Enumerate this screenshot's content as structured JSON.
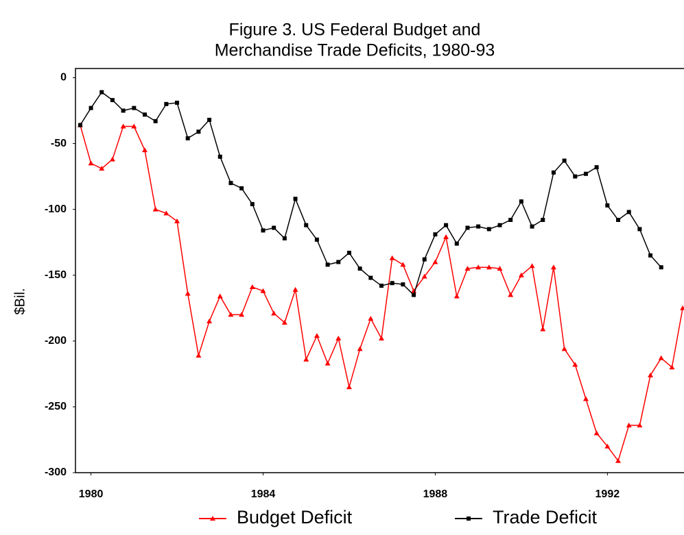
{
  "chart_data": {
    "type": "line",
    "title": [
      "Figure 3. US Federal Budget and",
      "Merchandise Trade Deficits, 1980-93"
    ],
    "y_label": "$Bil.",
    "x": [
      1979.75,
      1980,
      1980.25,
      1980.5,
      1980.75,
      1981,
      1981.25,
      1981.5,
      1981.75,
      1982,
      1982.25,
      1982.5,
      1982.75,
      1983,
      1983.25,
      1983.5,
      1983.75,
      1984,
      1984.25,
      1984.5,
      1984.75,
      1985,
      1985.25,
      1985.5,
      1985.75,
      1986,
      1986.25,
      1986.5,
      1986.75,
      1987,
      1987.25,
      1987.5,
      1987.75,
      1988,
      1988.25,
      1988.5,
      1988.75,
      1989,
      1989.25,
      1989.5,
      1989.75,
      1990,
      1990.25,
      1990.5,
      1990.75,
      1991,
      1991.25,
      1991.5,
      1991.75,
      1992,
      1992.25,
      1992.5,
      1992.75,
      1993,
      1993.25,
      1993.5,
      1993.75
    ],
    "series": [
      {
        "name": "Budget Deficit",
        "color": "#ff0000",
        "marker": "triangle",
        "values": [
          -36,
          -65,
          -69,
          -62,
          -37,
          -37,
          -55,
          -100,
          -103,
          -109,
          -164,
          -211,
          -185,
          -166,
          -180,
          -180,
          -159,
          -162,
          -179,
          -186,
          -161,
          -214,
          -196,
          -217,
          -198,
          -235,
          -206,
          -183,
          -198,
          -137,
          -142,
          -162,
          -151,
          -140,
          -121,
          -166,
          -145,
          -144,
          -144,
          -145,
          -165,
          -150,
          -143,
          -191,
          -144,
          -206,
          -218,
          -244,
          -270,
          -280,
          -291,
          -264,
          -264,
          -226,
          -213,
          -220,
          -175
        ]
      },
      {
        "name": "Trade Deficit",
        "color": "#000000",
        "marker": "square",
        "values": [
          -36,
          -23,
          -11,
          -17,
          -25,
          -23,
          -28,
          -33,
          -20,
          -19,
          -46,
          -41,
          -32,
          -60,
          -80,
          -84,
          -96,
          -116,
          -114,
          -122,
          -92,
          -112,
          -123,
          -142,
          -140,
          -133,
          -145,
          -152,
          -158,
          -156,
          -157,
          -165,
          -138,
          -119,
          -112,
          -126,
          -114,
          -113,
          -115,
          -112,
          -108,
          -94,
          -113,
          -108,
          -72,
          -63,
          -75,
          -73,
          -68,
          -97,
          -108,
          -102,
          -115,
          -135,
          -144,
          null,
          null
        ]
      }
    ],
    "xlim": [
      1979.64,
      1993.78
    ],
    "xticks": [
      1980,
      1984,
      1988,
      1992
    ],
    "ylim": [
      -300,
      7
    ],
    "yticks": [
      0,
      -50,
      -100,
      -150,
      -200,
      -250,
      -300
    ],
    "grid": false
  }
}
